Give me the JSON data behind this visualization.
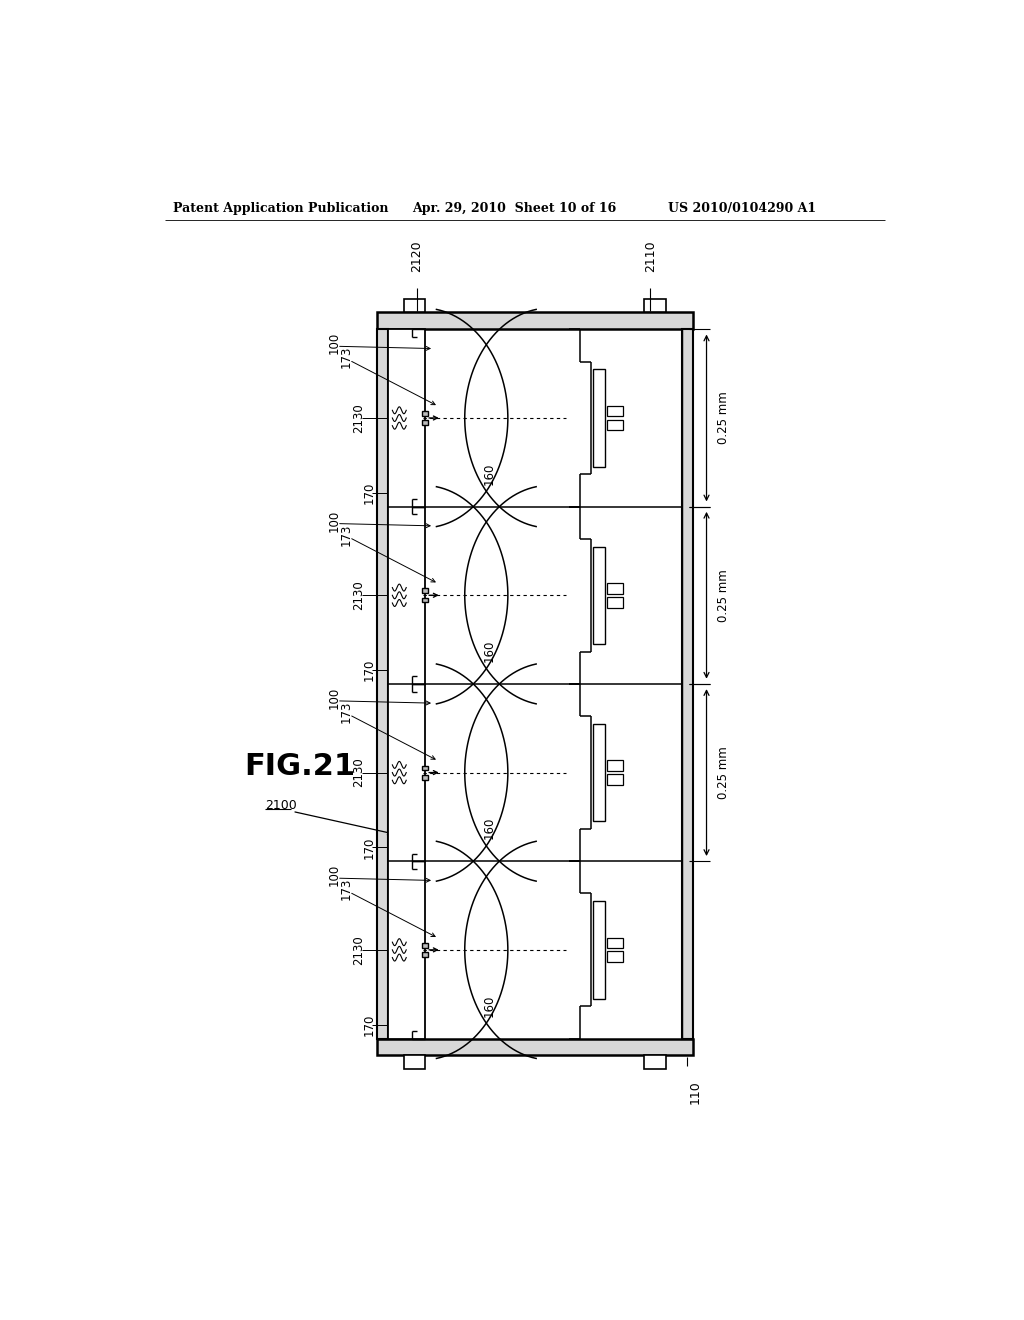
{
  "header_left": "Patent Application Publication",
  "header_mid": "Apr. 29, 2010  Sheet 10 of 16",
  "header_right": "US 2010/0104290 A1",
  "fig_label": "FIG.21",
  "label_2100": "2100",
  "label_2110": "2110",
  "label_2120": "2120",
  "label_100": "100",
  "label_170": "170",
  "label_173": "173",
  "label_2130": "2130",
  "label_160": "160",
  "label_110": "110",
  "dim_label": "0.25 mm",
  "num_units": 4,
  "bg_color": "#ffffff"
}
